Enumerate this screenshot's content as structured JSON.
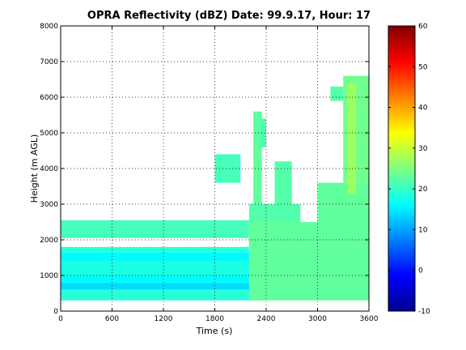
{
  "chart_data": {
    "type": "heatmap",
    "title": "OPRA Reflectivity (dBZ)  Date: 99.9.17, Hour: 17",
    "xlabel": "Time (s)",
    "ylabel": "Height (m AGL)",
    "xlim": [
      0,
      3600
    ],
    "ylim": [
      0,
      8000
    ],
    "xticks": [
      "0",
      "600",
      "1200",
      "1800",
      "2400",
      "3000",
      "3600"
    ],
    "yticks": [
      "0",
      "1000",
      "2000",
      "3000",
      "4000",
      "5000",
      "6000",
      "7000",
      "8000"
    ],
    "grid": true,
    "colorbar": {
      "colormap": "jet",
      "clim": [
        -10,
        60
      ],
      "ticks": [
        "-10",
        "0",
        "10",
        "20",
        "30",
        "40",
        "50",
        "60"
      ]
    },
    "echo_regions_dbz": [
      {
        "t": [
          0,
          2400
        ],
        "h": [
          300,
          600
        ],
        "dbz": 19
      },
      {
        "t": [
          0,
          2400
        ],
        "h": [
          600,
          800
        ],
        "dbz": 14
      },
      {
        "t": [
          0,
          2400
        ],
        "h": [
          800,
          1000
        ],
        "dbz": 16
      },
      {
        "t": [
          0,
          2300
        ],
        "h": [
          1000,
          1400
        ],
        "dbz": 18
      },
      {
        "t": [
          0,
          2300
        ],
        "h": [
          1400,
          1650
        ],
        "dbz": 16
      },
      {
        "t": [
          0,
          2200
        ],
        "h": [
          1650,
          1800
        ],
        "dbz": 19
      },
      {
        "t": [
          2200,
          3600
        ],
        "h": [
          300,
          2500
        ],
        "dbz": 23
      },
      {
        "t": [
          2200,
          2800
        ],
        "h": [
          2500,
          3000
        ],
        "dbz": 22
      },
      {
        "t": [
          0,
          2200
        ],
        "h": [
          2050,
          2550
        ],
        "dbz": 21
      },
      {
        "t": [
          2250,
          2350
        ],
        "h": [
          3000,
          5600
        ],
        "dbz": 23
      },
      {
        "t": [
          2300,
          2400
        ],
        "h": [
          4600,
          5400
        ],
        "dbz": 22
      },
      {
        "t": [
          1800,
          2100
        ],
        "h": [
          3600,
          4400
        ],
        "dbz": 21
      },
      {
        "t": [
          2500,
          2700
        ],
        "h": [
          3000,
          4200
        ],
        "dbz": 22
      },
      {
        "t": [
          3000,
          3600
        ],
        "h": [
          2500,
          3600
        ],
        "dbz": 23
      },
      {
        "t": [
          3300,
          3600
        ],
        "h": [
          3600,
          6600
        ],
        "dbz": 24
      },
      {
        "t": [
          3150,
          3300
        ],
        "h": [
          5900,
          6300
        ],
        "dbz": 22
      },
      {
        "t": [
          3350,
          3450
        ],
        "h": [
          3300,
          6400
        ],
        "dbz": 27
      }
    ]
  }
}
